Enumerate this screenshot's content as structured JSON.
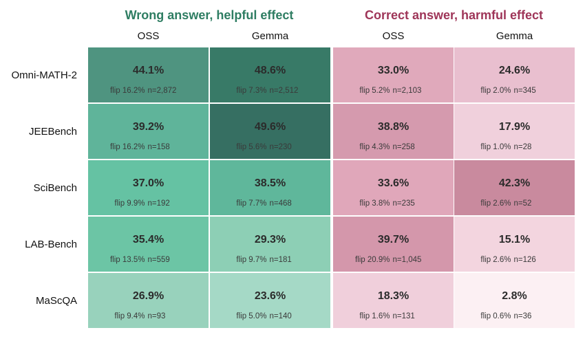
{
  "chart_data": {
    "type": "heatmap",
    "rows": [
      "Omni-MATH-2",
      "JEEBench",
      "SciBench",
      "LAB-Bench",
      "MaScQA"
    ],
    "panels": [
      {
        "title": "Wrong answer, helpful effect",
        "title_color": "#2e7d62",
        "columns": [
          "OSS",
          "Gemma"
        ],
        "cells": [
          [
            {
              "value": "44.1%",
              "flip": "flip 16.2%",
              "n": "n=2,872",
              "color": "#4f9480"
            },
            {
              "value": "48.6%",
              "flip": "flip 7.3%",
              "n": "n=2,512",
              "color": "#387a67"
            }
          ],
          [
            {
              "value": "39.2%",
              "flip": "flip 16.2%",
              "n": "n=158",
              "color": "#5fb49a"
            },
            {
              "value": "49.6%",
              "flip": "flip 5.6%",
              "n": "n=230",
              "color": "#366f62"
            }
          ],
          [
            {
              "value": "37.0%",
              "flip": "flip 9.9%",
              "n": "n=192",
              "color": "#65c2a3"
            },
            {
              "value": "38.5%",
              "flip": "flip 7.7%",
              "n": "n=468",
              "color": "#5fb79b"
            }
          ],
          [
            {
              "value": "35.4%",
              "flip": "flip 13.5%",
              "n": "n=559",
              "color": "#6cc5a5"
            },
            {
              "value": "29.3%",
              "flip": "flip 9.7%",
              "n": "n=181",
              "color": "#8dcfb5"
            }
          ],
          [
            {
              "value": "26.9%",
              "flip": "flip 9.4%",
              "n": "n=93",
              "color": "#98d2bc"
            },
            {
              "value": "23.6%",
              "flip": "flip 5.0%",
              "n": "n=140",
              "color": "#a5d9c6"
            }
          ]
        ]
      },
      {
        "title": "Correct answer, harmful effect",
        "title_color": "#9e3558",
        "columns": [
          "OSS",
          "Gemma"
        ],
        "cells": [
          [
            {
              "value": "33.0%",
              "flip": "flip 5.2%",
              "n": "n=2,103",
              "color": "#e0a9bb"
            },
            {
              "value": "24.6%",
              "flip": "flip 2.0%",
              "n": "n=345",
              "color": "#e9bfcf"
            }
          ],
          [
            {
              "value": "38.8%",
              "flip": "flip 4.3%",
              "n": "n=258",
              "color": "#d59aae"
            },
            {
              "value": "17.9%",
              "flip": "flip 1.0%",
              "n": "n=28",
              "color": "#f0d0dc"
            }
          ],
          [
            {
              "value": "33.6%",
              "flip": "flip 3.8%",
              "n": "n=235",
              "color": "#e0a7ba"
            },
            {
              "value": "42.3%",
              "flip": "flip 2.6%",
              "n": "n=52",
              "color": "#c98a9e"
            }
          ],
          [
            {
              "value": "39.7%",
              "flip": "flip 20.9%",
              "n": "n=1,045",
              "color": "#d497ab"
            },
            {
              "value": "15.1%",
              "flip": "flip 2.6%",
              "n": "n=126",
              "color": "#f3d5df"
            }
          ],
          [
            {
              "value": "18.3%",
              "flip": "flip 1.6%",
              "n": "n=131",
              "color": "#f0cfdb"
            },
            {
              "value": "2.8%",
              "flip": "flip 0.6%",
              "n": "n=36",
              "color": "#fcf0f3"
            }
          ]
        ]
      }
    ]
  }
}
